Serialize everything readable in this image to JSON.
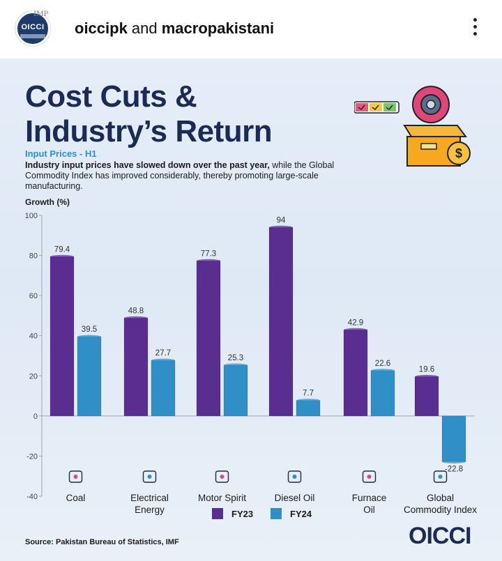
{
  "post": {
    "account_avatar_text": "OICCI",
    "avatar_badge": "IMP",
    "username_a": "oiccipk",
    "username_joiner": " and ",
    "username_b": "macropakistani"
  },
  "infographic": {
    "title": "Cost Cuts &\nIndustry’s Return",
    "subtitle": "Input Prices - H1",
    "description_bold": "Industry input prices have slowed down over the past year,",
    "description_rest": " while the Global Commodity Index has improved considerably, thereby promoting large-scale manufacturing.",
    "source": "Source: Pakistan Bureau of Statistics, IMF",
    "logo": "OICCI"
  },
  "colors": {
    "fy23": "#5a2d91",
    "fy24": "#2f8fc6",
    "title": "#1b2a56",
    "accent": "#2f8fd3"
  },
  "chart_data": {
    "type": "bar",
    "ylabel": "Growth (%)",
    "ylim": [
      -40,
      100
    ],
    "yticks": [
      -40,
      -20,
      0,
      20,
      40,
      60,
      80,
      100
    ],
    "categories": [
      [
        "Coal"
      ],
      [
        "Electrical",
        "Energy"
      ],
      [
        "Motor Spirit"
      ],
      [
        "Diesel Oil"
      ],
      [
        "Furnace",
        "Oil"
      ],
      [
        "Global",
        "Commodity Index"
      ]
    ],
    "category_icons": [
      "coal-cart-icon",
      "power-tower-icon",
      "fuel-pump-icon",
      "oil-can-icon",
      "furnace-icon",
      "globe-icon"
    ],
    "series": [
      {
        "name": "FY23",
        "values": [
          79.4,
          48.8,
          77.3,
          94,
          42.9,
          19.6
        ]
      },
      {
        "name": "FY24",
        "values": [
          39.5,
          27.7,
          25.3,
          7.7,
          22.6,
          -22.8
        ]
      }
    ],
    "legend_position": "bottom-center",
    "grid": false
  }
}
